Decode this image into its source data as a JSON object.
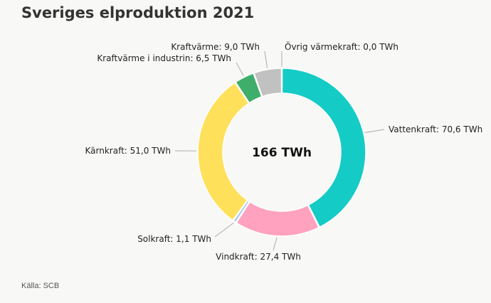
{
  "page": {
    "title": "Sveriges elproduktion 2021",
    "source": "Källa: SCB"
  },
  "chart_data": {
    "type": "pie",
    "donut": true,
    "title": "Sveriges elproduktion 2021",
    "center_label": "166 TWh",
    "unit": "TWh",
    "slices": [
      {
        "label": "Vattenkraft: 70,6 TWh",
        "value": 70.6,
        "color": "#15cbc6"
      },
      {
        "label": "Vindkraft: 27,4 TWh",
        "value": 27.4,
        "color": "#ffa2bf"
      },
      {
        "label": "Solkraft: 1,1 TWh",
        "value": 1.1,
        "color": "#9ec3ef"
      },
      {
        "label": "Kärnkraft: 51,0 TWh",
        "value": 51.0,
        "color": "#ffe05a"
      },
      {
        "label": "Kraftvärme i industrin: 6,5 TWh",
        "value": 6.5,
        "color": "#3fae6a"
      },
      {
        "label": "Kraftvärme: 9,0 TWh",
        "value": 9.0,
        "color": "#c1c1c1"
      },
      {
        "label": "Övrig värmekraft: 0,0 TWh",
        "value": 0.0,
        "color": "#8a8a8a"
      }
    ],
    "source": "Källa: SCB"
  }
}
